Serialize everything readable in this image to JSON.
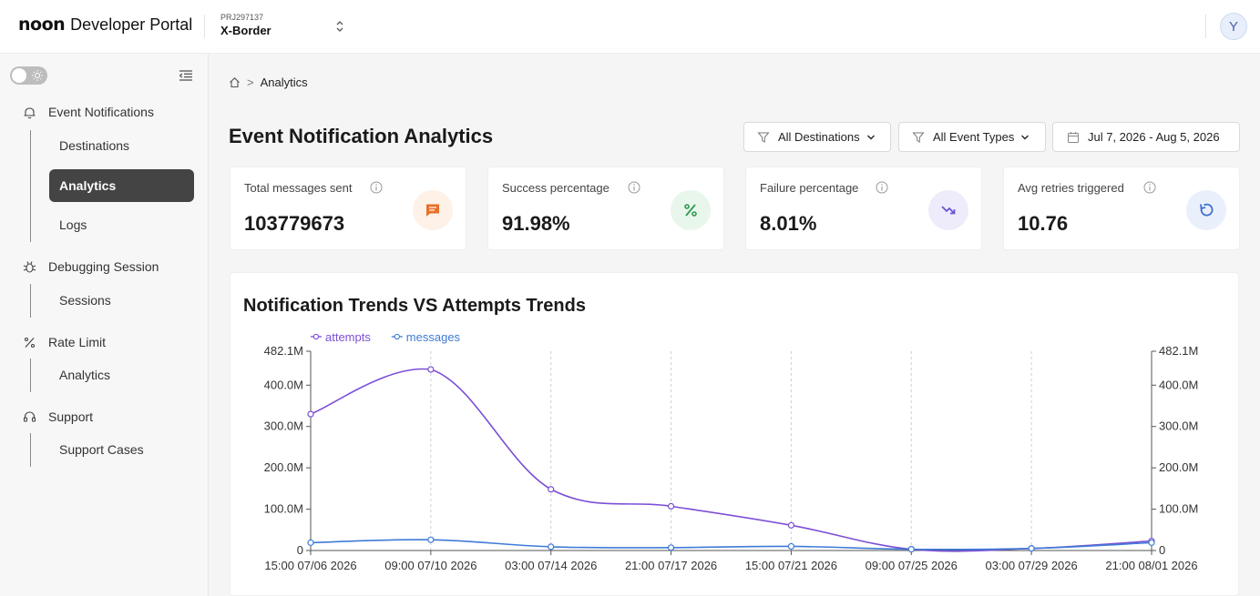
{
  "header": {
    "brand_logo": "noon",
    "brand_title": "Developer Portal",
    "project_id": "PRJ297137",
    "project_name": "X-Border",
    "avatar_initial": "Y"
  },
  "sidebar": {
    "groups": [
      {
        "title": "Event Notifications",
        "icon": "bell-icon",
        "items": [
          {
            "label": "Destinations",
            "active": false
          },
          {
            "label": "Analytics",
            "active": true
          },
          {
            "label": "Logs",
            "active": false
          }
        ]
      },
      {
        "title": "Debugging Session",
        "icon": "bug-icon",
        "items": [
          {
            "label": "Sessions",
            "active": false
          }
        ]
      },
      {
        "title": "Rate Limit",
        "icon": "percent-icon",
        "items": [
          {
            "label": "Analytics",
            "active": false
          }
        ]
      },
      {
        "title": "Support",
        "icon": "headset-icon",
        "items": [
          {
            "label": "Support Cases",
            "active": false
          }
        ]
      }
    ]
  },
  "breadcrumb": {
    "separator": ">",
    "current": "Analytics"
  },
  "page_title": "Event Notification Analytics",
  "filters": {
    "destinations": "All Destinations",
    "event_types": "All Event Types",
    "date_range": "Jul 7, 2026 - Aug 5, 2026"
  },
  "stats": [
    {
      "label": "Total messages sent",
      "value": "103779673",
      "icon": "message-icon",
      "color": "#e8702a",
      "bg": "#fdf1e8"
    },
    {
      "label": "Success percentage",
      "value": "91.98%",
      "icon": "percent-icon",
      "color": "#2e9a4f",
      "bg": "#e8f6ec"
    },
    {
      "label": "Failure percentage",
      "value": "8.01%",
      "icon": "trend-down-icon",
      "color": "#6a56d6",
      "bg": "#eeecfb"
    },
    {
      "label": "Avg retries triggered",
      "value": "10.76",
      "icon": "retry-icon",
      "color": "#3f6fd1",
      "bg": "#eaf0fb"
    }
  ],
  "chart": {
    "title": "Notification Trends VS Attempts Trends"
  },
  "chart_data": {
    "type": "line",
    "title": "Notification Trends VS Attempts Trends",
    "x": [
      "15:00 07/06 2026",
      "09:00 07/10 2026",
      "03:00 07/14 2026",
      "21:00 07/17 2026",
      "15:00 07/21 2026",
      "09:00 07/25 2026",
      "03:00 07/29 2026",
      "21:00 08/01 2026"
    ],
    "series": [
      {
        "name": "attempts",
        "color": "#7b4fd6",
        "values": [
          330000000,
          438000000,
          148000000,
          107000000,
          61000000,
          3000000,
          5000000,
          23000000
        ]
      },
      {
        "name": "messages",
        "color": "#3f7bd6",
        "values": [
          19000000,
          26000000,
          9000000,
          7000000,
          10000000,
          3000000,
          5000000,
          19000000
        ]
      }
    ],
    "ylim": [
      0,
      482100000
    ],
    "y_ticks": [
      "0",
      "100.0M",
      "200.0M",
      "300.0M",
      "400.0M",
      "482.1M"
    ],
    "y_tick_values": [
      0,
      100000000,
      200000000,
      300000000,
      400000000,
      482100000
    ],
    "y2_ticks": [
      "0",
      "100.0M",
      "200.0M",
      "300.0M",
      "400.0M",
      "482.1M"
    ],
    "legend_position": "top-left",
    "grid": "vertical-dashed"
  }
}
